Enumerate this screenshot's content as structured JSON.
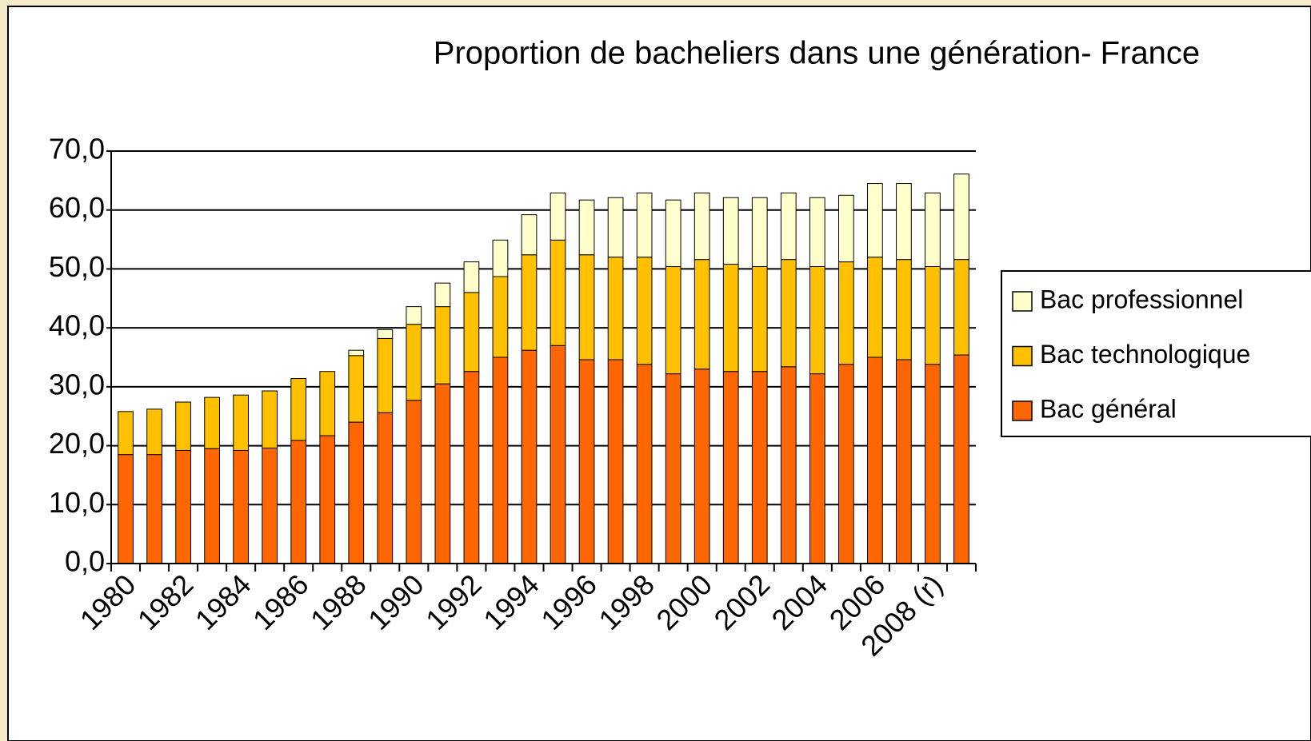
{
  "chart_data": {
    "type": "stacked_bar",
    "title": "Proportion de bacheliers dans une génération- France",
    "categories": [
      "1980",
      null,
      "1982",
      null,
      "1984",
      null,
      "1986",
      null,
      "1988",
      null,
      "1990",
      null,
      "1992",
      null,
      "1994",
      null,
      "1996",
      null,
      "1998",
      null,
      "2000",
      null,
      "2002",
      null,
      "2004",
      null,
      "2006",
      null,
      "2008 (r)",
      null
    ],
    "series": [
      {
        "name": "Bac général",
        "color": "#ff6600",
        "values": [
          18.5,
          18.5,
          19.2,
          19.5,
          19.2,
          19.6,
          20.9,
          21.7,
          24.0,
          25.6,
          27.7,
          30.5,
          32.6,
          35.0,
          36.2,
          37.0,
          34.6,
          34.6,
          33.8,
          32.2,
          33.0,
          32.6,
          32.6,
          33.4,
          32.2,
          33.8,
          35.0,
          34.6,
          33.8,
          35.4
        ]
      },
      {
        "name": "Bac technologique",
        "color": "#ffc000",
        "values": [
          7.3,
          7.7,
          8.2,
          8.7,
          9.4,
          9.7,
          10.5,
          10.9,
          11.3,
          12.6,
          12.9,
          13.1,
          13.4,
          13.7,
          16.2,
          17.9,
          17.8,
          17.4,
          18.2,
          18.2,
          18.6,
          18.2,
          17.8,
          18.2,
          18.2,
          17.4,
          17.0,
          17.0,
          16.6,
          16.2
        ]
      },
      {
        "name": "Bac professionnel",
        "color": "#ffffcc",
        "values": [
          0,
          0,
          0,
          0,
          0,
          0,
          0,
          0,
          0.9,
          1.5,
          3.0,
          4.0,
          5.2,
          6.2,
          6.8,
          8.0,
          9.3,
          10.1,
          10.9,
          11.3,
          11.3,
          11.3,
          11.7,
          11.3,
          11.7,
          11.3,
          12.5,
          12.9,
          12.5,
          14.5
        ]
      }
    ],
    "ylim": [
      0,
      70
    ],
    "yticks": [
      {
        "value": 0,
        "label": "0,0"
      },
      {
        "value": 10,
        "label": "10,0"
      },
      {
        "value": 20,
        "label": "20,0"
      },
      {
        "value": 30,
        "label": "30,0"
      },
      {
        "value": 40,
        "label": "40,0"
      },
      {
        "value": 50,
        "label": "50,0"
      },
      {
        "value": 60,
        "label": "60,0"
      },
      {
        "value": 70,
        "label": "70,0"
      }
    ],
    "grid": true,
    "legend": "right"
  }
}
